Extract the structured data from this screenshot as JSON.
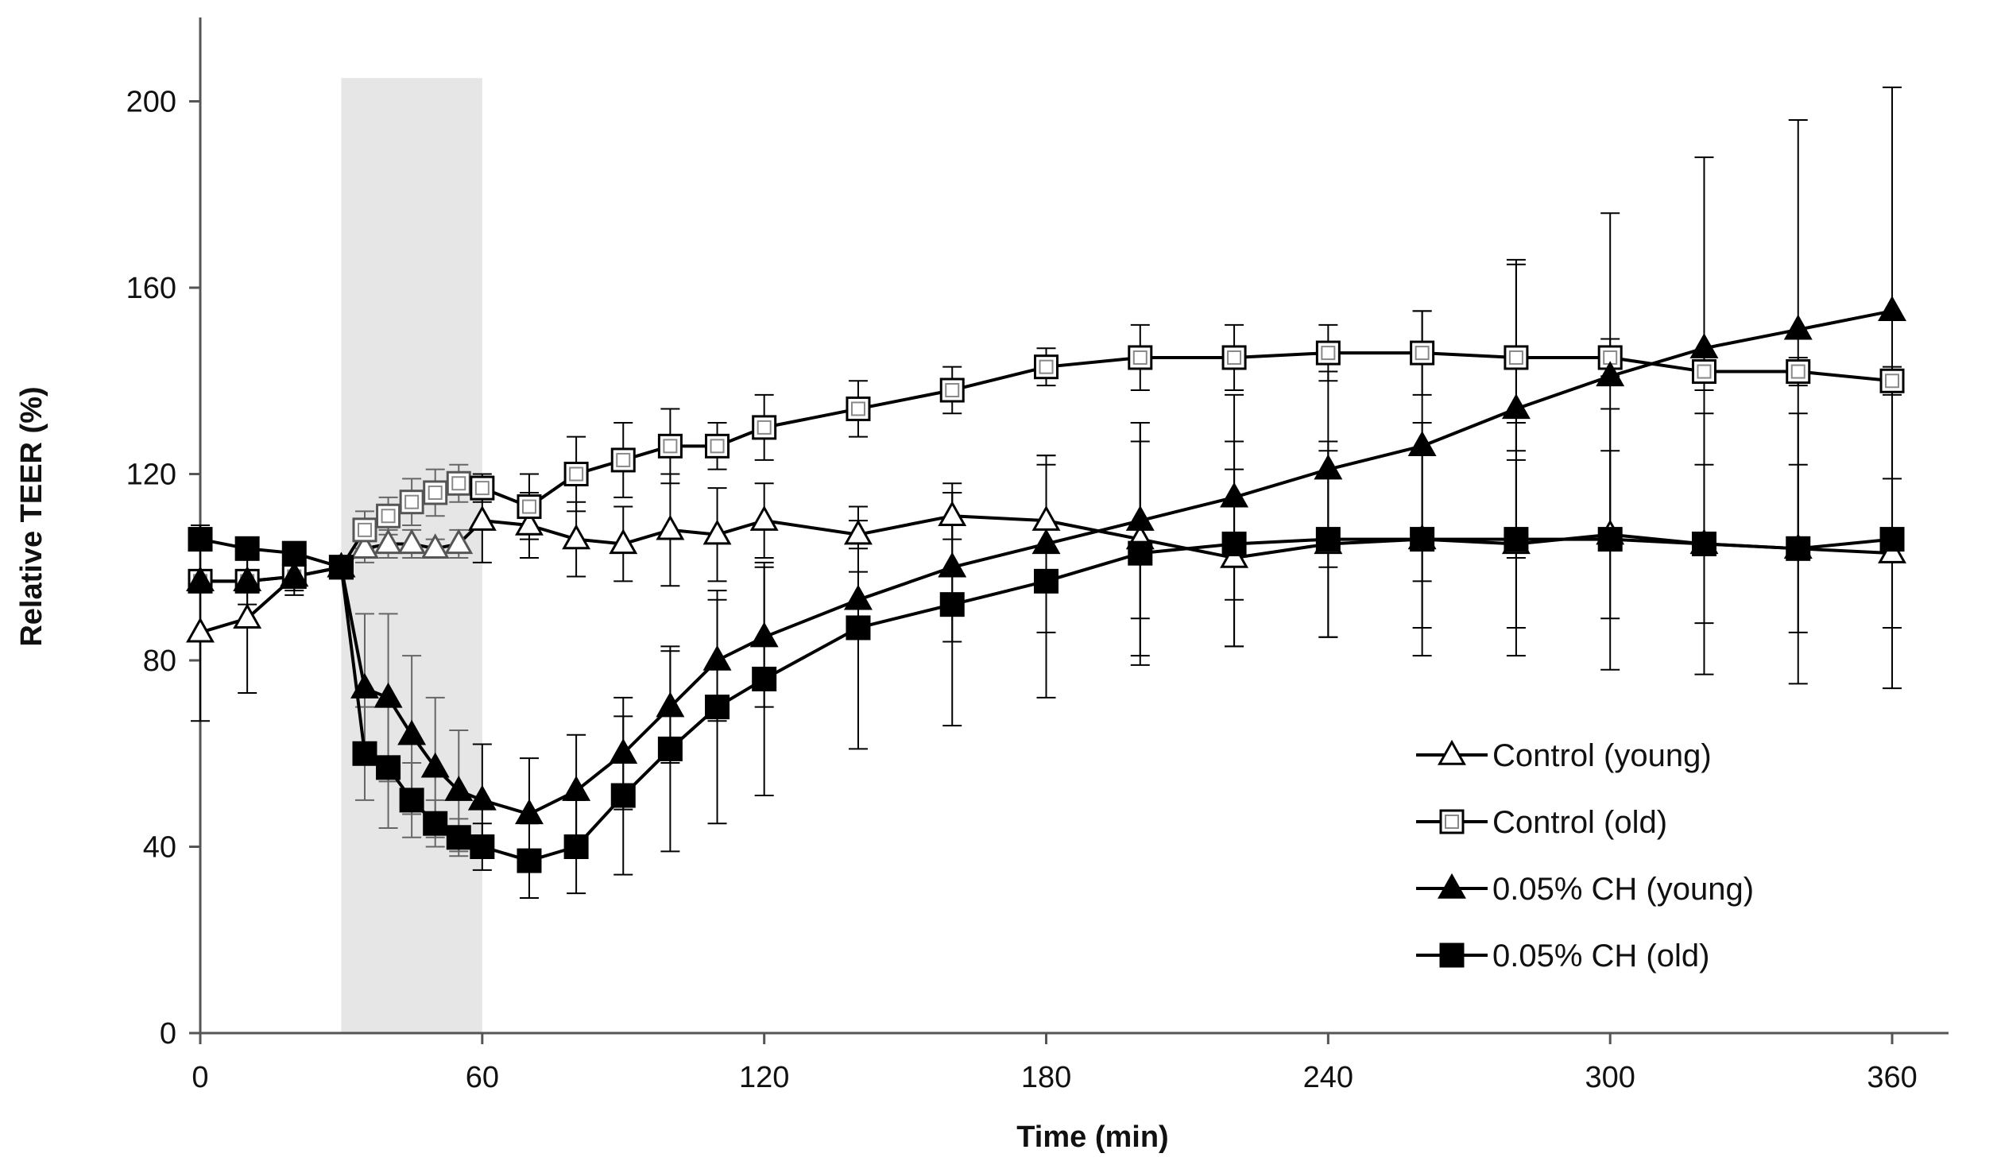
{
  "chart_data": {
    "type": "line",
    "title": "",
    "xlabel": "Time (min)",
    "ylabel": "Relative TEER (%)",
    "xlim": [
      0,
      372
    ],
    "ylim": [
      0,
      218
    ],
    "xticks": [
      0,
      60,
      120,
      180,
      240,
      300,
      360
    ],
    "yticks": [
      0,
      40,
      80,
      120,
      160,
      200
    ],
    "grid": false,
    "legend_position": "lower-right",
    "shaded_region": {
      "x_start": 30,
      "x_end": 60,
      "color": "#e6e6e6"
    },
    "colors": {
      "series": "#000000",
      "shade": "#e6e6e6",
      "axis": "#555555",
      "open_marker_inner": "#888888"
    },
    "series": [
      {
        "name": "Control (young)",
        "marker": "triangle-open",
        "x": [
          0,
          10,
          20,
          30,
          35,
          40,
          45,
          50,
          55,
          60,
          70,
          80,
          90,
          100,
          110,
          120,
          140,
          160,
          180,
          200,
          220,
          240,
          260,
          280,
          300,
          320,
          340,
          360
        ],
        "y": [
          86,
          89,
          98,
          100,
          104,
          105,
          105,
          104,
          105,
          110,
          109,
          106,
          105,
          108,
          107,
          110,
          107,
          111,
          110,
          106,
          102,
          105,
          106,
          105,
          107,
          105,
          104,
          103
        ],
        "err": [
          19,
          16,
          4,
          0,
          3,
          3,
          3,
          2,
          3,
          9,
          7,
          8,
          8,
          12,
          10,
          8,
          3,
          5,
          14,
          25,
          19,
          20,
          19,
          18,
          18,
          17,
          18,
          16
        ]
      },
      {
        "name": "Control (old)",
        "marker": "square-open",
        "x": [
          0,
          10,
          20,
          30,
          35,
          40,
          45,
          50,
          55,
          60,
          70,
          80,
          90,
          100,
          110,
          120,
          140,
          160,
          180,
          200,
          220,
          240,
          260,
          280,
          300,
          320,
          340,
          360
        ],
        "y": [
          97,
          97,
          98,
          100,
          108,
          111,
          114,
          116,
          118,
          117,
          113,
          120,
          123,
          126,
          126,
          130,
          134,
          138,
          143,
          145,
          145,
          146,
          146,
          145,
          145,
          142,
          142,
          140
        ],
        "err": [
          12,
          5,
          3,
          0,
          4,
          4,
          5,
          5,
          4,
          3,
          7,
          8,
          8,
          8,
          5,
          7,
          6,
          5,
          4,
          7,
          7,
          6,
          9,
          20,
          4,
          4,
          3,
          3
        ]
      },
      {
        "name": "0.05% CH (young)",
        "marker": "triangle-filled",
        "x": [
          0,
          10,
          20,
          30,
          35,
          40,
          45,
          50,
          55,
          60,
          70,
          80,
          90,
          100,
          110,
          120,
          140,
          160,
          180,
          200,
          220,
          240,
          260,
          280,
          300,
          320,
          340,
          360
        ],
        "y": [
          97,
          97,
          98,
          100,
          74,
          72,
          64,
          57,
          52,
          50,
          47,
          52,
          60,
          70,
          80,
          85,
          93,
          100,
          105,
          110,
          115,
          121,
          126,
          134,
          141,
          147,
          151,
          155
        ],
        "err": [
          0,
          0,
          0,
          0,
          16,
          18,
          17,
          15,
          13,
          12,
          12,
          12,
          12,
          12,
          13,
          15,
          6,
          16,
          19,
          21,
          22,
          21,
          29,
          32,
          35,
          41,
          45,
          48
        ]
      },
      {
        "name": "0.05% CH (old)",
        "marker": "square-filled",
        "x": [
          0,
          10,
          20,
          30,
          35,
          40,
          45,
          50,
          55,
          60,
          70,
          80,
          90,
          100,
          110,
          120,
          140,
          160,
          180,
          200,
          220,
          240,
          260,
          280,
          300,
          320,
          340,
          360
        ],
        "y": [
          106,
          104,
          103,
          100,
          60,
          57,
          50,
          45,
          42,
          40,
          37,
          40,
          51,
          61,
          70,
          76,
          87,
          92,
          97,
          103,
          105,
          106,
          106,
          106,
          106,
          105,
          104,
          106
        ],
        "err": [
          0,
          0,
          0,
          0,
          10,
          13,
          8,
          5,
          4,
          5,
          8,
          10,
          17,
          22,
          25,
          25,
          26,
          26,
          25,
          24,
          22,
          21,
          25,
          25,
          28,
          28,
          29,
          32
        ]
      }
    ]
  }
}
